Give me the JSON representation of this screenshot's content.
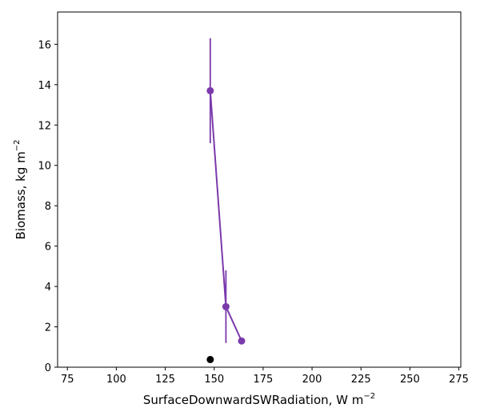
{
  "chart_data": {
    "type": "scatter",
    "xlabel": "SurfaceDownwardSWRadiation,  W m",
    "xlabel_exp": "−2",
    "ylabel": "Biomass,  kg m",
    "ylabel_exp": "−2",
    "xlim": [
      70,
      276
    ],
    "ylim": [
      0,
      17.6
    ],
    "xticks": [
      75,
      100,
      125,
      150,
      175,
      200,
      225,
      250,
      275
    ],
    "yticks": [
      0,
      2,
      4,
      6,
      8,
      10,
      12,
      14,
      16
    ],
    "grid": false,
    "series": [
      {
        "color": "#7b3aac",
        "connected": true,
        "points": [
          {
            "x": 148,
            "y": 13.7,
            "err": 2.6
          },
          {
            "x": 156,
            "y": 3.0,
            "err": 1.8
          },
          {
            "x": 164,
            "y": 1.3,
            "err": 0
          }
        ]
      },
      {
        "color": "#000000",
        "connected": false,
        "points": [
          {
            "x": 148,
            "y": 0.38,
            "err": 0.12
          }
        ]
      }
    ]
  }
}
